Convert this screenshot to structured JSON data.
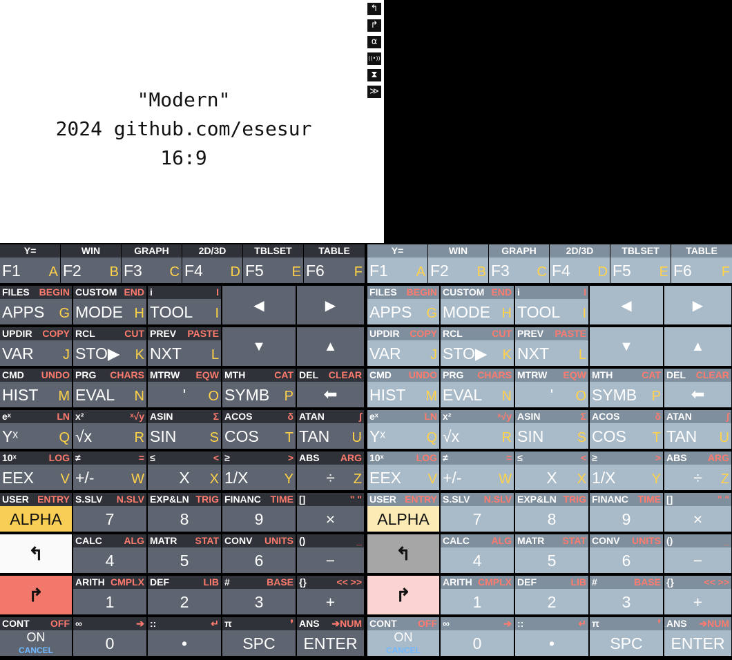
{
  "screen": {
    "lines": [
      "\"Modern\"",
      "2024 github.com/esesur",
      "16:9"
    ],
    "annunciators": [
      "left-shift-icon",
      "right-shift-icon",
      "alpha-icon",
      "transmit-icon",
      "busy-icon",
      "scroll-icon"
    ],
    "glyphs": [
      "↰",
      "↱",
      "α",
      "((•))",
      "⧗",
      "≫"
    ]
  },
  "colors": {
    "key_dark": "#5f6570",
    "key_dark_top": "#2f3238",
    "key_light": "#a9bac8",
    "key_light_top": "#7f8f9e",
    "shift_left": "#e8e8e8",
    "shift_right": "#f2786c",
    "alpha_key": "#f8ce56",
    "accent_red": "#ff7b6e",
    "accent_yellow": "#ffd24a"
  },
  "keyboards": [
    {
      "fkeys": [
        {
          "top": "Y=",
          "main": "F1",
          "alpha": "A"
        },
        {
          "top": "WIN",
          "main": "F2",
          "alpha": "B"
        },
        {
          "top": "GRAPH",
          "main": "F3",
          "alpha": "C"
        },
        {
          "top": "2D/3D",
          "main": "F4",
          "alpha": "D"
        },
        {
          "top": "TBLSET",
          "main": "F5",
          "alpha": "E"
        },
        {
          "top": "TABLE",
          "main": "F6",
          "alpha": "F"
        }
      ],
      "row1": [
        {
          "ls": "FILES",
          "rs": "BEGIN",
          "main": "APPS",
          "alpha": "G"
        },
        {
          "ls": "CUSTOM",
          "rs": "END",
          "main": "MODE",
          "alpha": "H"
        },
        {
          "ls": "i",
          "rs": "I",
          "main": "TOOL",
          "alpha": "I"
        }
      ],
      "row2": [
        {
          "ls": "UPDIR",
          "rs": "COPY",
          "main": "VAR",
          "alpha": "J"
        },
        {
          "ls": "RCL",
          "rs": "CUT",
          "main": "STO▶",
          "alpha": "K"
        },
        {
          "ls": "PREV",
          "rs": "PASTE",
          "main": "NXT",
          "alpha": "L"
        }
      ],
      "arrows": [
        "◀",
        "▶",
        "▼",
        "▲"
      ],
      "row3": [
        {
          "ls": "CMD",
          "rs": "UNDO",
          "main": "HIST",
          "alpha": "M"
        },
        {
          "ls": "PRG",
          "rs": "CHARS",
          "main": "EVAL",
          "alpha": "N"
        },
        {
          "ls": "MTRW",
          "rs": "EQW",
          "main": "'",
          "alpha": "O"
        },
        {
          "ls": "MTH",
          "rs": "CAT",
          "main": "SYMB",
          "alpha": "P"
        },
        {
          "ls": "DEL",
          "rs": "CLEAR",
          "main": "⬅",
          "alpha": ""
        }
      ],
      "row4": [
        {
          "ls": "eˣ",
          "rs": "LN",
          "main": "Yˣ",
          "alpha": "Q"
        },
        {
          "ls": "x²",
          "rs": "ˣ√y",
          "main": "√x",
          "alpha": "R"
        },
        {
          "ls": "ASIN",
          "rs": "Σ",
          "main": "SIN",
          "alpha": "S"
        },
        {
          "ls": "ACOS",
          "rs": "δ",
          "main": "COS",
          "alpha": "T"
        },
        {
          "ls": "ATAN",
          "rs": "∫",
          "main": "TAN",
          "alpha": "U"
        }
      ],
      "row5": [
        {
          "ls": "10ˣ",
          "rs": "LOG",
          "main": "EEX",
          "alpha": "V"
        },
        {
          "ls": "≠",
          "rs": "=",
          "main": "+/-",
          "alpha": "W"
        },
        {
          "ls": "≤",
          "rs": "<",
          "main": "X",
          "alpha": "X"
        },
        {
          "ls": "≥",
          "rs": ">",
          "main": "1/X",
          "alpha": "Y"
        },
        {
          "ls": "ABS",
          "rs": "ARG",
          "main": "÷",
          "alpha": "Z"
        }
      ],
      "row6": [
        {
          "ls": "USER",
          "rs": "ENTRY",
          "main": "ALPHA"
        },
        {
          "ls": "S.SLV",
          "rs": "N.SLV",
          "main": "7"
        },
        {
          "ls": "EXP&LN",
          "rs": "TRIG",
          "main": "8"
        },
        {
          "ls": "FINANC",
          "rs": "TIME",
          "main": "9"
        },
        {
          "ls": "[]",
          "rs": "\" \"",
          "main": "×"
        }
      ],
      "row7": [
        {
          "ls": "",
          "rs": "",
          "main": "↰"
        },
        {
          "ls": "CALC",
          "rs": "ALG",
          "main": "4"
        },
        {
          "ls": "MATR",
          "rs": "STAT",
          "main": "5"
        },
        {
          "ls": "CONV",
          "rs": "UNITS",
          "main": "6"
        },
        {
          "ls": "()",
          "rs": "_",
          "main": "−"
        }
      ],
      "row8": [
        {
          "ls": "",
          "rs": "",
          "main": "↱"
        },
        {
          "ls": "ARITH",
          "rs": "CMPLX",
          "main": "1"
        },
        {
          "ls": "DEF",
          "rs": "LIB",
          "main": "2"
        },
        {
          "ls": "#",
          "rs": "BASE",
          "main": "3"
        },
        {
          "ls": "{}",
          "rs": "<< >>",
          "main": "+"
        }
      ],
      "row9": [
        {
          "ls": "CONT",
          "rs": "OFF",
          "main": "ON",
          "sub": "CANCEL"
        },
        {
          "ls": "∞",
          "rs": "➔",
          "main": "0"
        },
        {
          "ls": "::",
          "rs": "↵",
          "main": "•"
        },
        {
          "ls": "π",
          "rs": "❜",
          "main": "SPC"
        },
        {
          "ls": "ANS",
          "rs": "➔NUM",
          "main": "ENTER"
        }
      ]
    }
  ]
}
